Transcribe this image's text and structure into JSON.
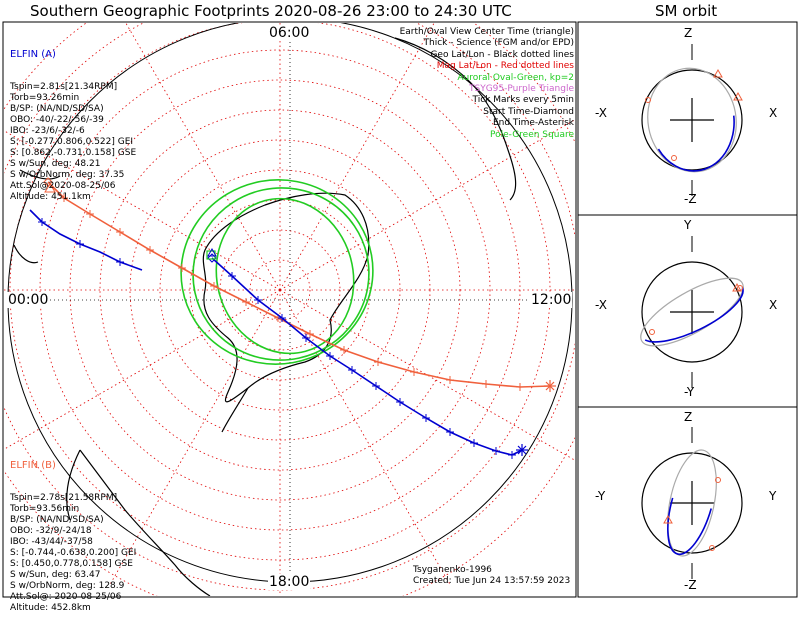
{
  "title": "Southern Geographic Footprints 2020-08-26 23:00 to 24:30 UTC",
  "orbit_title": "SM orbit",
  "time_labels": {
    "top": "06:00",
    "left": "00:00",
    "right": "12:00",
    "bottom": "18:00"
  },
  "elfin_a": {
    "name": "ELFIN (A)",
    "color": "#0000d0",
    "lines": [
      "Tspin=2.81s[21.34RPM]",
      "Torb=93.26min",
      "B/SP: (NA/ND/SD/SA)",
      "OBO: -40/-22/-56/-39",
      "IBO: -23/6/-32/-6",
      "S: [-0.277,0.806,0.522] GEI",
      "S: [0.862,-0.731,0.158] GSE",
      "S w/Sun, deg: 48.21",
      "S w/OrbNorm, deg: 37.35",
      "Att.Sol@2020-08-25/06",
      "Altitude: 451.1km"
    ]
  },
  "elfin_b": {
    "name": "ELFIN (B)",
    "color": "#f0603c",
    "lines": [
      "Tspin=2.78s[21.58RPM]",
      "Torb=93.56min",
      "B/SP: (NA/ND/SD/SA)",
      "OBO: -32/9/-24/18",
      "IBO: -43/44/-37/58",
      "S: [-0.744,-0.638,0.200] GEI",
      "S: [0.450,0.778,0.158] GSE",
      "S w/Sun, deg: 63.47",
      "S w/OrbNorm, deg: 128.9",
      "Att.Sol@: 2020-08-25/06",
      "Altitude: 452.8km"
    ]
  },
  "legend": [
    {
      "text": "Earth/Oval View Center Time (triangle)",
      "color": "#000000"
    },
    {
      "text": "Thick - Science (FGM and/or EPD)",
      "color": "#000000"
    },
    {
      "text": "Geo Lat/Lon - Black dotted lines",
      "color": "#000000"
    },
    {
      "text": "Mag Lat/Lon - Red dotted lines",
      "color": "#e00000"
    },
    {
      "text": "Auroral Oval-Green, kp=2",
      "color": "#22cc22"
    },
    {
      "text": "TSYG95-Purple Triangle",
      "color": "#cc66cc"
    },
    {
      "text": "Tick Marks every 5min",
      "color": "#000000"
    },
    {
      "text": "Start Time-Diamond",
      "color": "#000000"
    },
    {
      "text": "End Time-Asterisk",
      "color": "#000000"
    },
    {
      "text": "Pole-Green Square",
      "color": "#22cc22"
    }
  ],
  "footer": {
    "model": "Tsyganenko-1996",
    "created": "Created: Tue Jun 24 13:57:59 2023"
  },
  "orbit_panels": [
    {
      "top": "Z",
      "bottom": "-Z",
      "left": "-X",
      "right": "X"
    },
    {
      "top": "Y",
      "bottom": "-Y",
      "left": "-X",
      "right": "X"
    },
    {
      "top": "Z",
      "bottom": "-Z",
      "left": "-Y",
      "right": "Y"
    }
  ],
  "colors": {
    "elfin_a": "#0000d0",
    "elfin_b": "#f0603c",
    "oval": "#22cc22",
    "mag_grid": "#e00000",
    "geo_grid": "#000000",
    "orbit_gray": "#aaaaaa"
  }
}
